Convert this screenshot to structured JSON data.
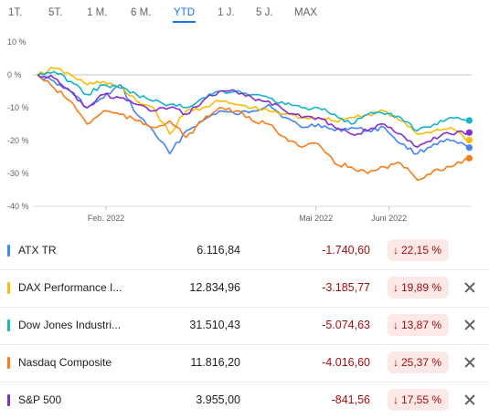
{
  "tabs": [
    {
      "label": "1T."
    },
    {
      "label": "5T."
    },
    {
      "label": "1 M."
    },
    {
      "label": "6 M."
    },
    {
      "label": "YTD"
    },
    {
      "label": "1 J."
    },
    {
      "label": "5 J."
    },
    {
      "label": "MAX"
    }
  ],
  "active_tab": "YTD",
  "chart_data": {
    "type": "line",
    "ylim": [
      -40,
      10
    ],
    "yticks": [
      10,
      0,
      -10,
      -20,
      -30,
      -40
    ],
    "ytick_labels": [
      "10 %",
      "0 %",
      "-10 %",
      "-20 %",
      "-30 %",
      "-40 %"
    ],
    "xlim": [
      "2022-01-01",
      "2022-07-06"
    ],
    "xticks": [
      {
        "date": "2022-02-01",
        "label": "Feb. 2022"
      },
      {
        "date": "2022-05-01",
        "label": "Mai 2022"
      },
      {
        "date": "2022-06-01",
        "label": "Juni 2022"
      }
    ],
    "grid": false,
    "baseline": 0,
    "series": [
      {
        "name": "ATX TR",
        "color": "#4285f4",
        "x": [
          "2022-01-03",
          "2022-01-10",
          "2022-01-17",
          "2022-01-24",
          "2022-01-31",
          "2022-02-07",
          "2022-02-14",
          "2022-02-21",
          "2022-02-28",
          "2022-03-07",
          "2022-03-14",
          "2022-03-21",
          "2022-03-28",
          "2022-04-04",
          "2022-04-11",
          "2022-04-18",
          "2022-04-25",
          "2022-05-02",
          "2022-05-09",
          "2022-05-16",
          "2022-05-23",
          "2022-05-30",
          "2022-06-06",
          "2022-06-13",
          "2022-06-20",
          "2022-06-27",
          "2022-07-05"
        ],
        "values": [
          0,
          -2,
          -5,
          -10,
          -7,
          -3,
          -12,
          -17,
          -24,
          -17,
          -14,
          -11,
          -12,
          -11,
          -9,
          -13,
          -16,
          -15,
          -17,
          -16,
          -17,
          -16,
          -21,
          -24,
          -21,
          -20,
          -22.15
        ]
      },
      {
        "name": "DAX Performance I...",
        "color": "#fbbc04",
        "x": [
          "2022-01-03",
          "2022-01-10",
          "2022-01-17",
          "2022-01-24",
          "2022-01-31",
          "2022-02-07",
          "2022-02-14",
          "2022-02-21",
          "2022-02-28",
          "2022-03-07",
          "2022-03-14",
          "2022-03-21",
          "2022-03-28",
          "2022-04-04",
          "2022-04-11",
          "2022-04-18",
          "2022-04-25",
          "2022-05-02",
          "2022-05-09",
          "2022-05-16",
          "2022-05-23",
          "2022-05-30",
          "2022-06-06",
          "2022-06-13",
          "2022-06-20",
          "2022-06-27",
          "2022-07-05"
        ],
        "values": [
          0,
          2,
          0,
          -3,
          -2,
          -4,
          -8,
          -10,
          -18,
          -11,
          -10,
          -8,
          -9,
          -10,
          -11,
          -12,
          -13,
          -13,
          -14,
          -13,
          -12,
          -11,
          -14,
          -18,
          -17,
          -16,
          -19.89
        ]
      },
      {
        "name": "Dow Jones Industri...",
        "color": "#12b5cb",
        "x": [
          "2022-01-03",
          "2022-01-10",
          "2022-01-17",
          "2022-01-24",
          "2022-01-31",
          "2022-02-07",
          "2022-02-14",
          "2022-02-21",
          "2022-02-28",
          "2022-03-07",
          "2022-03-14",
          "2022-03-21",
          "2022-03-28",
          "2022-04-04",
          "2022-04-11",
          "2022-04-18",
          "2022-04-25",
          "2022-05-02",
          "2022-05-09",
          "2022-05-16",
          "2022-05-23",
          "2022-05-30",
          "2022-06-06",
          "2022-06-13",
          "2022-06-20",
          "2022-06-27",
          "2022-07-05"
        ],
        "values": [
          0,
          1,
          -2,
          -6,
          -3,
          -4,
          -6,
          -8,
          -9,
          -10,
          -7,
          -5,
          -5,
          -6,
          -7,
          -9,
          -10,
          -10,
          -12,
          -15,
          -12,
          -12,
          -13,
          -17,
          -15,
          -13,
          -13.87
        ]
      },
      {
        "name": "Nasdaq Composite",
        "color": "#fa7b17",
        "x": [
          "2022-01-03",
          "2022-01-10",
          "2022-01-17",
          "2022-01-24",
          "2022-01-31",
          "2022-02-07",
          "2022-02-14",
          "2022-02-21",
          "2022-02-28",
          "2022-03-07",
          "2022-03-14",
          "2022-03-21",
          "2022-03-28",
          "2022-04-04",
          "2022-04-11",
          "2022-04-18",
          "2022-04-25",
          "2022-05-02",
          "2022-05-09",
          "2022-05-16",
          "2022-05-23",
          "2022-05-30",
          "2022-06-06",
          "2022-06-13",
          "2022-06-20",
          "2022-06-27",
          "2022-07-05"
        ],
        "values": [
          0,
          -4,
          -8,
          -15,
          -11,
          -12,
          -14,
          -16,
          -14,
          -19,
          -14,
          -10,
          -11,
          -14,
          -15,
          -19,
          -22,
          -21,
          -27,
          -28,
          -30,
          -28,
          -27,
          -32,
          -29,
          -28,
          -25.37
        ]
      },
      {
        "name": "S&P 500",
        "color": "#8430ce",
        "x": [
          "2022-01-03",
          "2022-01-10",
          "2022-01-17",
          "2022-01-24",
          "2022-01-31",
          "2022-02-07",
          "2022-02-14",
          "2022-02-21",
          "2022-02-28",
          "2022-03-07",
          "2022-03-14",
          "2022-03-21",
          "2022-03-28",
          "2022-04-04",
          "2022-04-11",
          "2022-04-18",
          "2022-04-25",
          "2022-05-02",
          "2022-05-09",
          "2022-05-16",
          "2022-05-23",
          "2022-05-30",
          "2022-06-06",
          "2022-06-13",
          "2022-06-20",
          "2022-06-27",
          "2022-07-05"
        ],
        "values": [
          0,
          -1,
          -5,
          -10,
          -6,
          -7,
          -9,
          -11,
          -10,
          -12,
          -8,
          -5,
          -5,
          -7,
          -8,
          -11,
          -13,
          -13,
          -16,
          -18,
          -17,
          -15,
          -18,
          -22,
          -19,
          -18,
          -17.55
        ]
      }
    ]
  },
  "table": [
    {
      "name": "ATX TR",
      "price": "6.116,84",
      "change": "-1.740,60",
      "percent": "22,15 %",
      "color": "#4285f4",
      "closable": false
    },
    {
      "name": "DAX Performance I...",
      "price": "12.834,96",
      "change": "-3.185,77",
      "percent": "19,89 %",
      "color": "#fbbc04",
      "closable": true
    },
    {
      "name": "Dow Jones Industri...",
      "price": "31.510,43",
      "change": "-5.074,63",
      "percent": "13,87 %",
      "color": "#12b5cb",
      "closable": true
    },
    {
      "name": "Nasdaq Composite",
      "price": "11.816,20",
      "change": "-4.016,60",
      "percent": "25,37 %",
      "color": "#fa7b17",
      "closable": true
    },
    {
      "name": "S&P 500",
      "price": "3.955,00",
      "change": "-841,56",
      "percent": "17,55 %",
      "color": "#8430ce",
      "closable": true
    }
  ],
  "icons": {
    "down": "arrow-down-icon",
    "close": "close-icon"
  }
}
